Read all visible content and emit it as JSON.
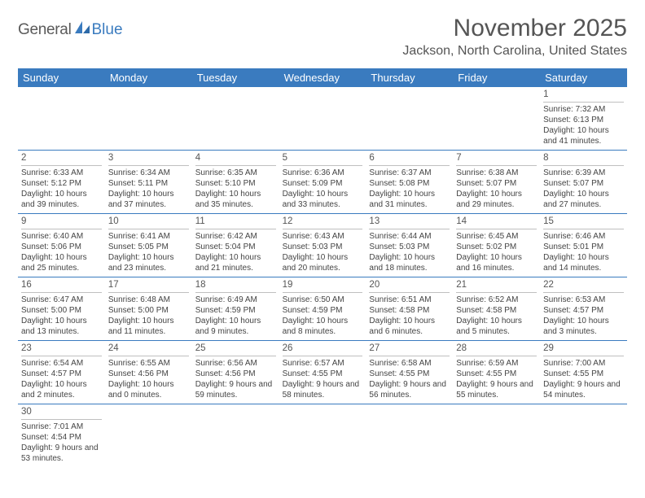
{
  "logo": {
    "general": "General",
    "blue": "Blue"
  },
  "title": "November 2025",
  "location": "Jackson, North Carolina, United States",
  "colors": {
    "header_bg": "#3a7bbf",
    "header_text": "#ffffff",
    "body_text": "#444444",
    "border": "#3a7bbf",
    "date_rule": "#bfbfbf"
  },
  "day_names": [
    "Sunday",
    "Monday",
    "Tuesday",
    "Wednesday",
    "Thursday",
    "Friday",
    "Saturday"
  ],
  "weeks": [
    [
      null,
      null,
      null,
      null,
      null,
      null,
      {
        "d": "1",
        "sr": "Sunrise: 7:32 AM",
        "ss": "Sunset: 6:13 PM",
        "dl": "Daylight: 10 hours and 41 minutes."
      }
    ],
    [
      {
        "d": "2",
        "sr": "Sunrise: 6:33 AM",
        "ss": "Sunset: 5:12 PM",
        "dl": "Daylight: 10 hours and 39 minutes."
      },
      {
        "d": "3",
        "sr": "Sunrise: 6:34 AM",
        "ss": "Sunset: 5:11 PM",
        "dl": "Daylight: 10 hours and 37 minutes."
      },
      {
        "d": "4",
        "sr": "Sunrise: 6:35 AM",
        "ss": "Sunset: 5:10 PM",
        "dl": "Daylight: 10 hours and 35 minutes."
      },
      {
        "d": "5",
        "sr": "Sunrise: 6:36 AM",
        "ss": "Sunset: 5:09 PM",
        "dl": "Daylight: 10 hours and 33 minutes."
      },
      {
        "d": "6",
        "sr": "Sunrise: 6:37 AM",
        "ss": "Sunset: 5:08 PM",
        "dl": "Daylight: 10 hours and 31 minutes."
      },
      {
        "d": "7",
        "sr": "Sunrise: 6:38 AM",
        "ss": "Sunset: 5:07 PM",
        "dl": "Daylight: 10 hours and 29 minutes."
      },
      {
        "d": "8",
        "sr": "Sunrise: 6:39 AM",
        "ss": "Sunset: 5:07 PM",
        "dl": "Daylight: 10 hours and 27 minutes."
      }
    ],
    [
      {
        "d": "9",
        "sr": "Sunrise: 6:40 AM",
        "ss": "Sunset: 5:06 PM",
        "dl": "Daylight: 10 hours and 25 minutes."
      },
      {
        "d": "10",
        "sr": "Sunrise: 6:41 AM",
        "ss": "Sunset: 5:05 PM",
        "dl": "Daylight: 10 hours and 23 minutes."
      },
      {
        "d": "11",
        "sr": "Sunrise: 6:42 AM",
        "ss": "Sunset: 5:04 PM",
        "dl": "Daylight: 10 hours and 21 minutes."
      },
      {
        "d": "12",
        "sr": "Sunrise: 6:43 AM",
        "ss": "Sunset: 5:03 PM",
        "dl": "Daylight: 10 hours and 20 minutes."
      },
      {
        "d": "13",
        "sr": "Sunrise: 6:44 AM",
        "ss": "Sunset: 5:03 PM",
        "dl": "Daylight: 10 hours and 18 minutes."
      },
      {
        "d": "14",
        "sr": "Sunrise: 6:45 AM",
        "ss": "Sunset: 5:02 PM",
        "dl": "Daylight: 10 hours and 16 minutes."
      },
      {
        "d": "15",
        "sr": "Sunrise: 6:46 AM",
        "ss": "Sunset: 5:01 PM",
        "dl": "Daylight: 10 hours and 14 minutes."
      }
    ],
    [
      {
        "d": "16",
        "sr": "Sunrise: 6:47 AM",
        "ss": "Sunset: 5:00 PM",
        "dl": "Daylight: 10 hours and 13 minutes."
      },
      {
        "d": "17",
        "sr": "Sunrise: 6:48 AM",
        "ss": "Sunset: 5:00 PM",
        "dl": "Daylight: 10 hours and 11 minutes."
      },
      {
        "d": "18",
        "sr": "Sunrise: 6:49 AM",
        "ss": "Sunset: 4:59 PM",
        "dl": "Daylight: 10 hours and 9 minutes."
      },
      {
        "d": "19",
        "sr": "Sunrise: 6:50 AM",
        "ss": "Sunset: 4:59 PM",
        "dl": "Daylight: 10 hours and 8 minutes."
      },
      {
        "d": "20",
        "sr": "Sunrise: 6:51 AM",
        "ss": "Sunset: 4:58 PM",
        "dl": "Daylight: 10 hours and 6 minutes."
      },
      {
        "d": "21",
        "sr": "Sunrise: 6:52 AM",
        "ss": "Sunset: 4:58 PM",
        "dl": "Daylight: 10 hours and 5 minutes."
      },
      {
        "d": "22",
        "sr": "Sunrise: 6:53 AM",
        "ss": "Sunset: 4:57 PM",
        "dl": "Daylight: 10 hours and 3 minutes."
      }
    ],
    [
      {
        "d": "23",
        "sr": "Sunrise: 6:54 AM",
        "ss": "Sunset: 4:57 PM",
        "dl": "Daylight: 10 hours and 2 minutes."
      },
      {
        "d": "24",
        "sr": "Sunrise: 6:55 AM",
        "ss": "Sunset: 4:56 PM",
        "dl": "Daylight: 10 hours and 0 minutes."
      },
      {
        "d": "25",
        "sr": "Sunrise: 6:56 AM",
        "ss": "Sunset: 4:56 PM",
        "dl": "Daylight: 9 hours and 59 minutes."
      },
      {
        "d": "26",
        "sr": "Sunrise: 6:57 AM",
        "ss": "Sunset: 4:55 PM",
        "dl": "Daylight: 9 hours and 58 minutes."
      },
      {
        "d": "27",
        "sr": "Sunrise: 6:58 AM",
        "ss": "Sunset: 4:55 PM",
        "dl": "Daylight: 9 hours and 56 minutes."
      },
      {
        "d": "28",
        "sr": "Sunrise: 6:59 AM",
        "ss": "Sunset: 4:55 PM",
        "dl": "Daylight: 9 hours and 55 minutes."
      },
      {
        "d": "29",
        "sr": "Sunrise: 7:00 AM",
        "ss": "Sunset: 4:55 PM",
        "dl": "Daylight: 9 hours and 54 minutes."
      }
    ],
    [
      {
        "d": "30",
        "sr": "Sunrise: 7:01 AM",
        "ss": "Sunset: 4:54 PM",
        "dl": "Daylight: 9 hours and 53 minutes."
      },
      null,
      null,
      null,
      null,
      null,
      null
    ]
  ]
}
